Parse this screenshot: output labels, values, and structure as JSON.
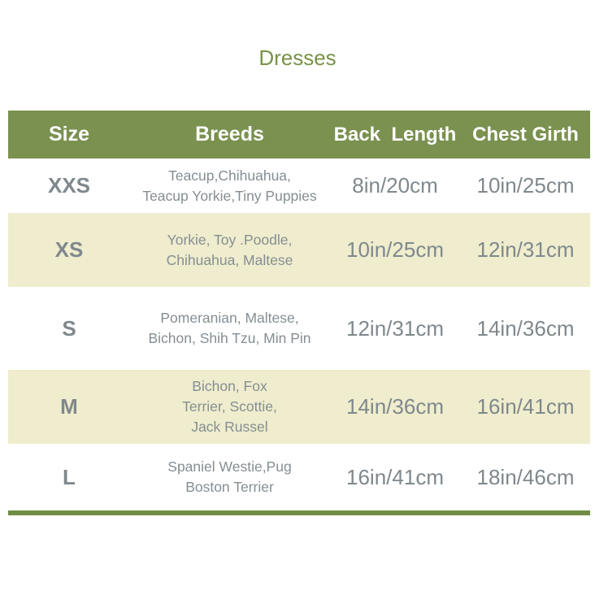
{
  "title": "Dresses",
  "colors": {
    "header_bg": "#7a9150",
    "alt_row_bg": "#efedcd",
    "text": "#7f888d"
  },
  "headers": [
    "Size",
    "Breeds",
    "Back  Length",
    "Chest Girth"
  ],
  "rows": [
    {
      "size": "XXS",
      "breeds": [
        "Teacup,Chihuahua,",
        "Teacup Yorkie,Tiny Puppies"
      ],
      "back_length": "8in/20cm",
      "chest_girth": "10in/25cm"
    },
    {
      "size": "XS",
      "breeds": [
        "Yorkie, Toy .Poodle,",
        "Chihuahua, Maltese"
      ],
      "back_length": "10in/25cm",
      "chest_girth": "12in/31cm"
    },
    {
      "size": "S",
      "breeds": [
        "Pomeranian, Maltese,",
        "Bichon, Shih Tzu, Min Pin"
      ],
      "back_length": "12in/31cm",
      "chest_girth": "14in/36cm"
    },
    {
      "size": "M",
      "breeds": [
        "Bichon, Fox",
        "Terrier, Scottie,",
        "Jack Russel"
      ],
      "back_length": "14in/36cm",
      "chest_girth": "16in/41cm"
    },
    {
      "size": "L",
      "breeds": [
        "Spaniel Westie,Pug",
        "Boston Terrier"
      ],
      "back_length": "16in/41cm",
      "chest_girth": "18in/46cm"
    }
  ]
}
